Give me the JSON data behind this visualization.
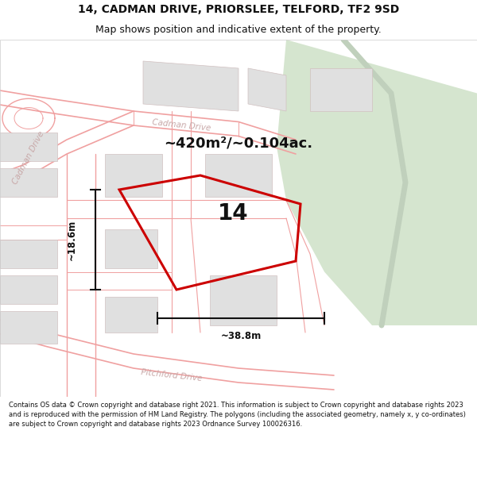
{
  "title": "14, CADMAN DRIVE, PRIORSLEE, TELFORD, TF2 9SD",
  "subtitle": "Map shows position and indicative extent of the property.",
  "area_label": "~420m²/~0.104ac.",
  "number_label": "14",
  "width_label": "~38.8m",
  "height_label": "~18.6m",
  "footer": "Contains OS data © Crown copyright and database right 2021. This information is subject to Crown copyright and database rights 2023 and is reproduced with the permission of HM Land Registry. The polygons (including the associated geometry, namely x, y co-ordinates) are subject to Crown copyright and database rights 2023 Ordnance Survey 100026316.",
  "bg_color": "#ffffff",
  "map_bg": "#f8f8f8",
  "road_line_color": "#f0a0a0",
  "green_area_color": "#d5e5cf",
  "green_path_color": "#c8d8c2",
  "plot_outline_color": "#cc0000",
  "building_color": "#e0e0e0",
  "building_edge": "#d0c0c0",
  "dim_color": "#111111",
  "road_label_color": "#c8a8a8"
}
